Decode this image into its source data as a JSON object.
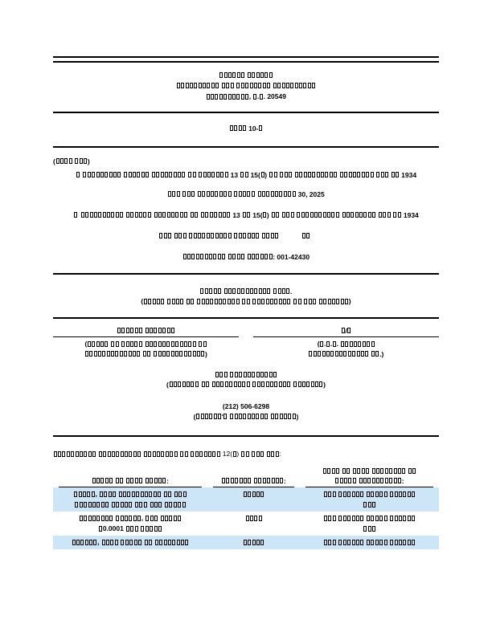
{
  "doc": {
    "agency_header": {
      "line1": "□□□□□□ □□□□□□",
      "line2": "□□□□□□□□□□ □□□ □□□□□□□□ □□□□□□□□□□",
      "line3": "□□□□□□□□□□, □.□. 20549"
    },
    "form_title": "□□□□ 10-□",
    "mark_one": "(□□□□ □□□)",
    "quarterly": {
      "checkbox": "□",
      "statement": "□□□□□□□□□ □□□□□□ □□□□□□□□ □□ □□□□□□□ 13 □□ 15(□) □□ □□□ □□□□□□□□□□ □□□□□□□□ □□□ □□ 1934"
    },
    "period_ended": "□□□ □□□ □□□□□□□□ □□□□□ □□□□□□□□□ 30, 2025",
    "transition": {
      "checkbox": "□",
      "statement": "□□□□□□□□□□ □□□□□□ □□□□□□□□ □□ □□□□□□□ 13 □□ 15(□) □□ □□□ □□□□□□□□□□ □□□□□□□□ □□□ □□ 1934"
    },
    "transition_period": "□□□ □□□ □□□□□□□□□□ □□□□□□ □□□□            □□            ",
    "commission_file": "□□□□□□□□□□ □□□□ □□□□□□: 001-42430",
    "registrant": {
      "name": "□□□□□ □□□□□□□□□□□ □□□□.",
      "name_caption": "(□□□□□ □□□□ □□ □□□□□□□□□□ □□ □□□□□□□□□ □□ □□□ □□□□□□□)"
    },
    "incorporation": {
      "state_value": "□□□□□□ □□□□□□□",
      "state_caption_l1": "(□□□□□ □□ □□□□□ □□□□□□□□□□□□ □□",
      "state_caption_l2": "□□□□□□□□□□□□□ □□ □□□□□□□□□□□□)",
      "irs_value": "□/□",
      "irs_caption_l1": "(□.□.□. □□□□□□□□",
      "irs_caption_l2": "□□□□□□□□□□□□□□ □□.)"
    },
    "address": {
      "value": "□□□ □□□□□□□□□□□",
      "caption": "(□□□□□□□ □□ □□□□□□□□□ □□□□□□□□□ □□□□□□□)"
    },
    "phone": {
      "value": "(212) 506-6298",
      "caption": "(□□□□□□'□ □□□□□□□□□ □□□□□□)"
    },
    "securities_12b_intro": "□□□□□□□□□□ □□□□□□□□□□ □□□□□□□□ □□ □□□□□□□ 12(□) □□ □□□ □□□:",
    "table": {
      "headers": {
        "class_title": "□□□□□ □□ □□□□ □□□□□:",
        "trading_symbol": "□□□□□□□ □□□□□□□:",
        "exchange_l1": "□□□□ □□ □□□□ □□□□□□□□ □□",
        "exchange_l2": "□□□□□ □□□□□□□□□□:"
      },
      "rows": [
        {
          "title_l1": "□□□□□, □□□□ □□□□□□□□□□ □□ □□□",
          "title_l2": "□□□□□□□□ □□□□□ □□□ □□□ □□□□□",
          "symbol": "□□□□□",
          "exchange_l1": "□□□ □□□□□□ □□□□□ □□□□□□",
          "exchange_l2": "□□□"
        },
        {
          "title_l1": "□□□□□□□□ □□□□□□, □□□ □□□□□",
          "title_l2": "□0.0001 □□□ □□□□□",
          "symbol": "□□□□",
          "exchange_l1": "□□□ □□□□□□ □□□□□ □□□□□□",
          "exchange_l2": "□□□"
        },
        {
          "title_l1": "□□□□□□, □□□□ □□□□□ □□ □□□□□□□□",
          "symbol": "□□□□□",
          "exchange_l1": "□□□ □□□□□□ □□□□□ □□□□□□"
        }
      ]
    },
    "colors": {
      "row_highlight": "#cde6f7",
      "text": "#000000",
      "rule": "#000000"
    }
  }
}
